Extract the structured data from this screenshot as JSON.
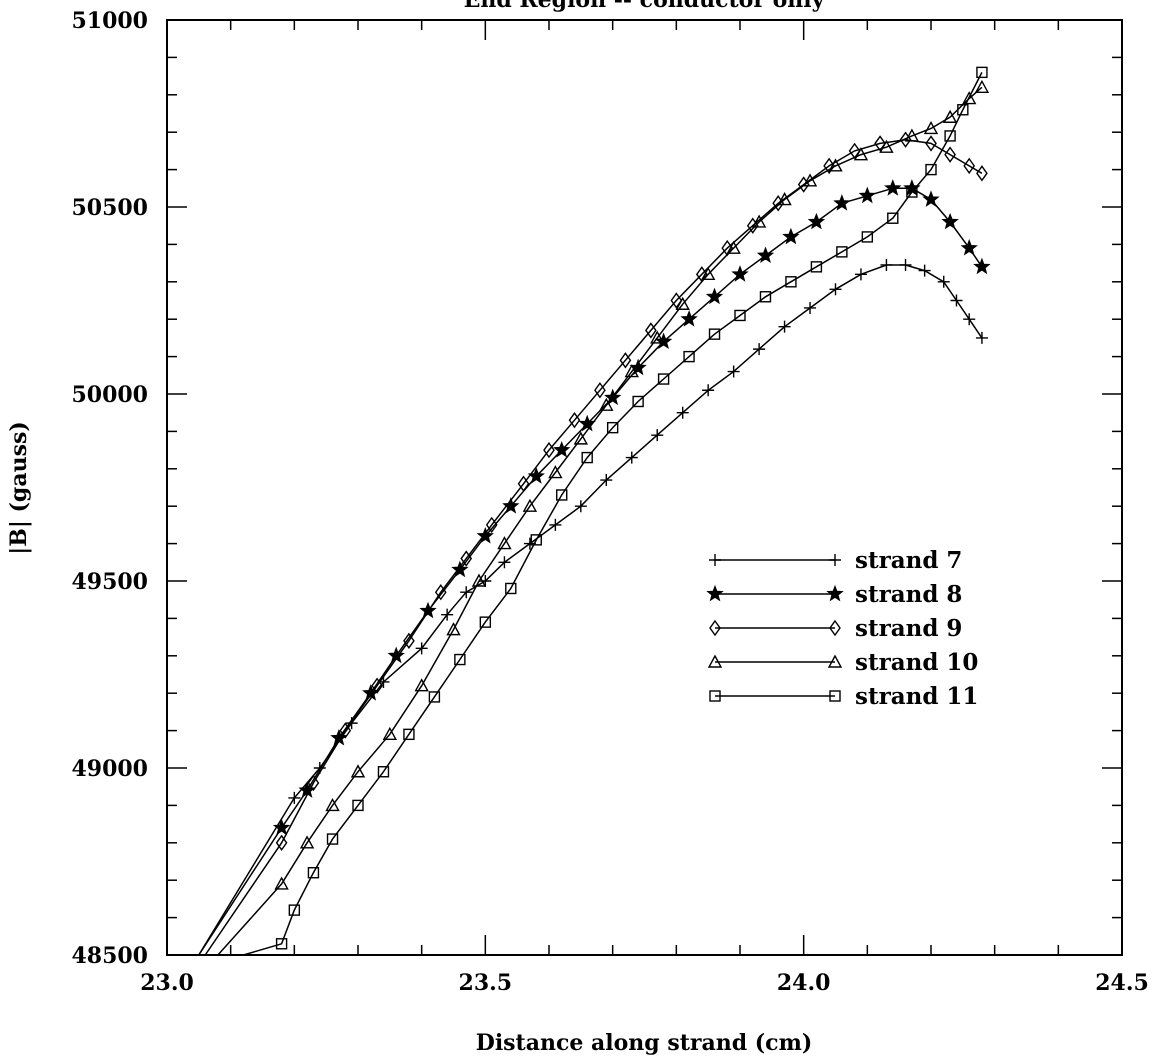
{
  "chart_data": {
    "type": "line",
    "title": "End Region -- conductor only",
    "xlabel": "Distance along strand (cm)",
    "ylabel": "|B| (gauss)",
    "xlim": [
      23.0,
      24.5
    ],
    "ylim": [
      48500,
      51000
    ],
    "xticks": [
      23.0,
      23.5,
      24.0,
      24.5
    ],
    "xtick_labels": [
      "23.0",
      "23.5",
      "24.0",
      "24.5"
    ],
    "yticks": [
      48500,
      49000,
      49500,
      50000,
      50500,
      51000
    ],
    "ytick_labels": [
      "48500",
      "49000",
      "49500",
      "50000",
      "50500",
      "51000"
    ],
    "grid": false,
    "legend_position": "right-middle",
    "series": [
      {
        "name": "strand 7",
        "marker": "plus",
        "x": [
          23.05,
          23.2,
          23.24,
          23.29,
          23.34,
          23.4,
          23.44,
          23.47,
          23.5,
          23.53,
          23.57,
          23.61,
          23.65,
          23.69,
          23.73,
          23.77,
          23.81,
          23.85,
          23.89,
          23.93,
          23.97,
          24.01,
          24.05,
          24.09,
          24.13,
          24.16,
          24.19,
          24.22,
          24.24,
          24.26,
          24.28
        ],
        "y": [
          48500,
          48920,
          49000,
          49120,
          49230,
          49320,
          49410,
          49470,
          49500,
          49550,
          49600,
          49650,
          49700,
          49770,
          49830,
          49890,
          49950,
          50010,
          50060,
          50120,
          50180,
          50230,
          50280,
          50320,
          50345,
          50345,
          50330,
          50300,
          50250,
          50200,
          50150
        ]
      },
      {
        "name": "strand 8",
        "marker": "star",
        "x": [
          23.05,
          23.18,
          23.22,
          23.27,
          23.32,
          23.36,
          23.41,
          23.46,
          23.5,
          23.54,
          23.58,
          23.62,
          23.66,
          23.7,
          23.74,
          23.78,
          23.82,
          23.86,
          23.9,
          23.94,
          23.98,
          24.02,
          24.06,
          24.1,
          24.14,
          24.17,
          24.2,
          24.23,
          24.26,
          24.28
        ],
        "y": [
          48500,
          48840,
          48940,
          49080,
          49200,
          49300,
          49420,
          49530,
          49620,
          49700,
          49780,
          49850,
          49920,
          49990,
          50070,
          50140,
          50200,
          50260,
          50320,
          50370,
          50420,
          50460,
          50510,
          50530,
          50550,
          50550,
          50520,
          50460,
          50390,
          50340
        ]
      },
      {
        "name": "strand 9",
        "marker": "diamond",
        "x": [
          23.06,
          23.18,
          23.23,
          23.28,
          23.33,
          23.38,
          23.43,
          23.47,
          23.51,
          23.56,
          23.6,
          23.64,
          23.68,
          23.72,
          23.76,
          23.8,
          23.84,
          23.88,
          23.92,
          23.96,
          24.0,
          24.04,
          24.08,
          24.12,
          24.16,
          24.2,
          24.23,
          24.26,
          24.28
        ],
        "y": [
          48500,
          48800,
          48960,
          49100,
          49220,
          49340,
          49470,
          49560,
          49650,
          49760,
          49850,
          49930,
          50010,
          50090,
          50170,
          50250,
          50320,
          50390,
          50450,
          50510,
          50560,
          50610,
          50650,
          50670,
          50680,
          50670,
          50640,
          50610,
          50590
        ]
      },
      {
        "name": "strand 10",
        "marker": "triangle",
        "x": [
          23.08,
          23.18,
          23.22,
          23.26,
          23.3,
          23.35,
          23.4,
          23.45,
          23.49,
          23.53,
          23.57,
          23.61,
          23.65,
          23.69,
          23.73,
          23.77,
          23.81,
          23.85,
          23.89,
          23.93,
          23.97,
          24.01,
          24.05,
          24.09,
          24.13,
          24.17,
          24.2,
          24.23,
          24.26,
          24.28
        ],
        "y": [
          48500,
          48690,
          48800,
          48900,
          48990,
          49090,
          49220,
          49370,
          49500,
          49600,
          49700,
          49790,
          49880,
          49970,
          50060,
          50150,
          50240,
          50320,
          50390,
          50460,
          50520,
          50570,
          50610,
          50640,
          50660,
          50690,
          50710,
          50740,
          50790,
          50820
        ]
      },
      {
        "name": "strand 11",
        "marker": "square",
        "x": [
          23.12,
          23.18,
          23.2,
          23.23,
          23.26,
          23.3,
          23.34,
          23.38,
          23.42,
          23.46,
          23.5,
          23.54,
          23.58,
          23.62,
          23.66,
          23.7,
          23.74,
          23.78,
          23.82,
          23.86,
          23.9,
          23.94,
          23.98,
          24.02,
          24.06,
          24.1,
          24.14,
          24.17,
          24.2,
          24.23,
          24.25,
          24.28
        ],
        "y": [
          48500,
          48530,
          48620,
          48720,
          48810,
          48900,
          48990,
          49090,
          49190,
          49290,
          49390,
          49480,
          49610,
          49730,
          49830,
          49910,
          49980,
          50040,
          50100,
          50160,
          50210,
          50260,
          50300,
          50340,
          50380,
          50420,
          50470,
          50540,
          50600,
          50690,
          50760,
          50860
        ]
      }
    ]
  }
}
